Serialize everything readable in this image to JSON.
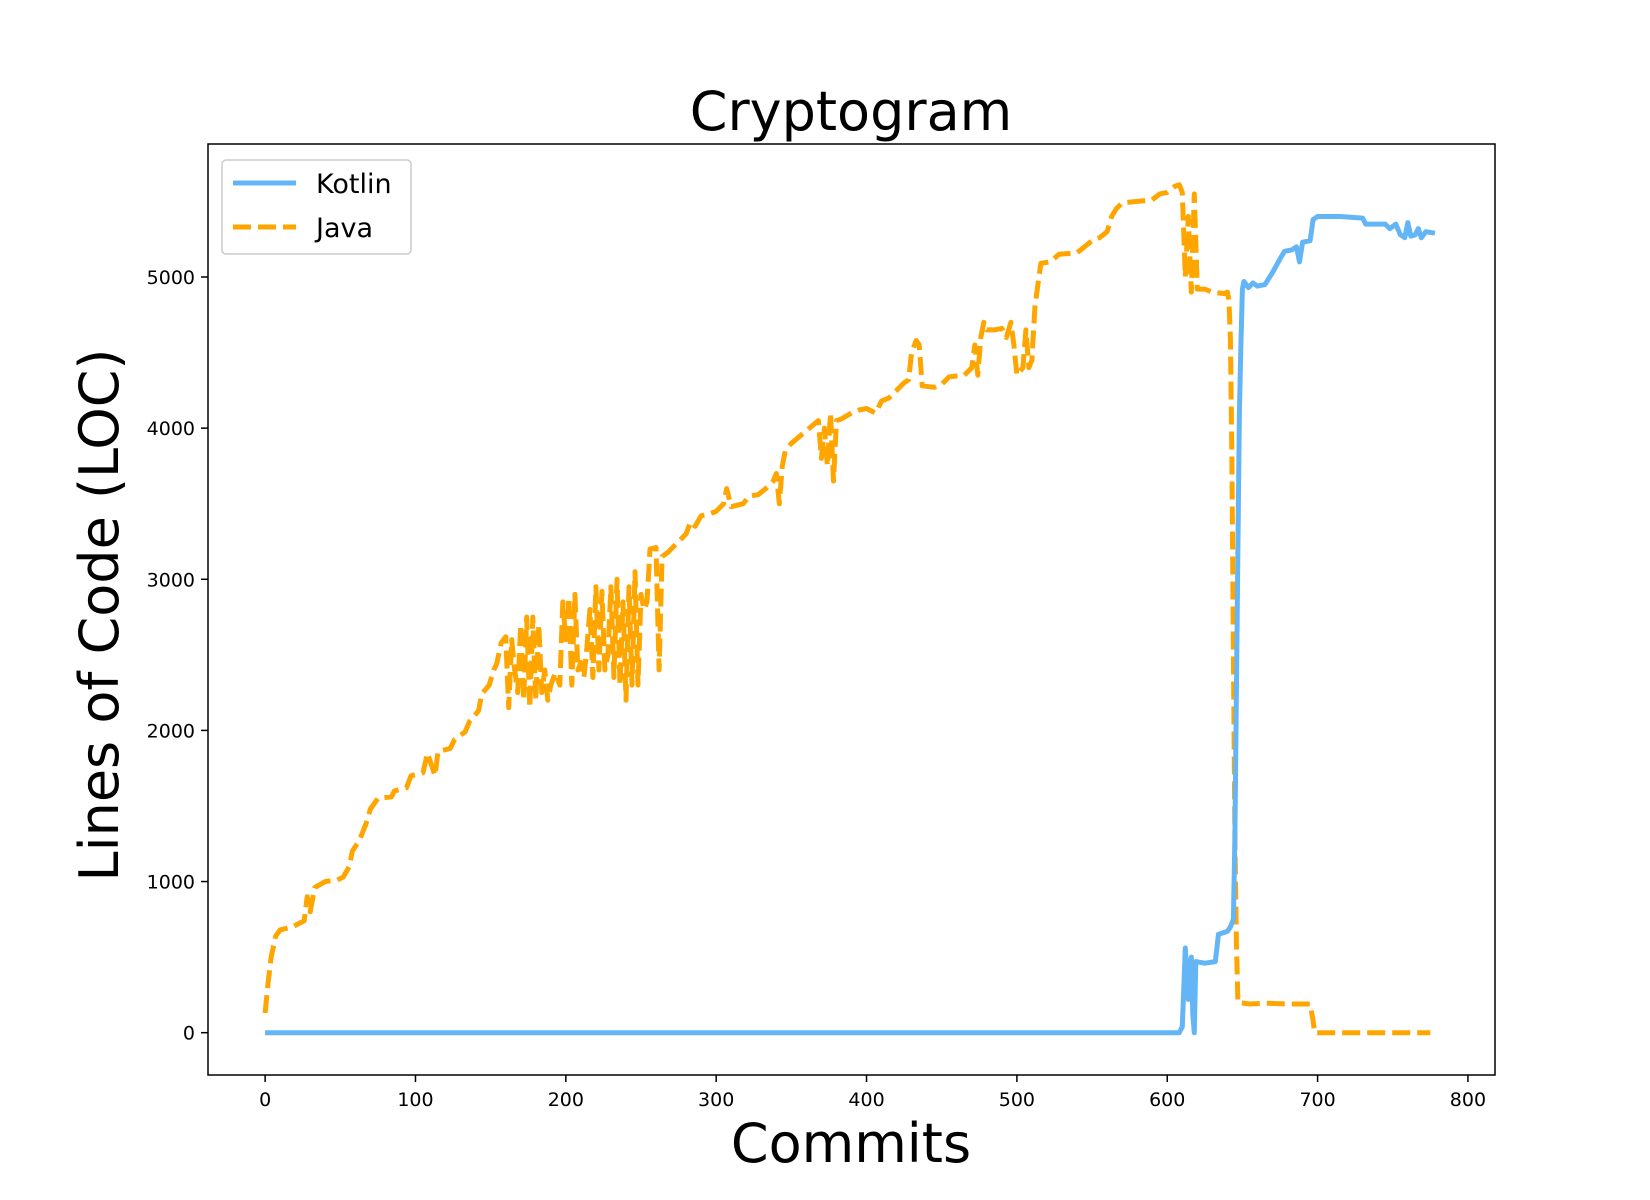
{
  "chart_data": {
    "type": "line",
    "title": "Cryptogram",
    "xlabel": "Commits",
    "ylabel": "Lines of Code (LOC)",
    "xlim": [
      -38,
      818
    ],
    "ylim": [
      -280,
      5880
    ],
    "xticks": [
      0,
      100,
      200,
      300,
      400,
      500,
      600,
      700,
      800
    ],
    "yticks": [
      0,
      1000,
      2000,
      3000,
      4000,
      5000
    ],
    "grid": false,
    "legend_position": "top-left",
    "series": [
      {
        "name": "Kotlin",
        "color": "#64b5f6",
        "style": "solid",
        "points": [
          [
            0,
            0
          ],
          [
            608,
            0
          ],
          [
            610,
            40
          ],
          [
            612,
            560
          ],
          [
            614,
            220
          ],
          [
            615,
            430
          ],
          [
            616,
            500
          ],
          [
            617,
            120
          ],
          [
            618,
            0
          ],
          [
            619,
            470
          ],
          [
            625,
            460
          ],
          [
            632,
            470
          ],
          [
            633,
            560
          ],
          [
            634,
            650
          ],
          [
            640,
            670
          ],
          [
            642,
            700
          ],
          [
            644,
            750
          ],
          [
            645,
            1300
          ],
          [
            647,
            3200
          ],
          [
            648,
            4100
          ],
          [
            649,
            4550
          ],
          [
            650,
            4920
          ],
          [
            651,
            4970
          ],
          [
            654,
            4930
          ],
          [
            657,
            4960
          ],
          [
            660,
            4940
          ],
          [
            665,
            4950
          ],
          [
            670,
            5030
          ],
          [
            675,
            5120
          ],
          [
            678,
            5170
          ],
          [
            683,
            5180
          ],
          [
            686,
            5200
          ],
          [
            688,
            5100
          ],
          [
            690,
            5230
          ],
          [
            695,
            5240
          ],
          [
            697,
            5380
          ],
          [
            700,
            5400
          ],
          [
            715,
            5400
          ],
          [
            730,
            5390
          ],
          [
            732,
            5350
          ],
          [
            745,
            5350
          ],
          [
            748,
            5320
          ],
          [
            752,
            5350
          ],
          [
            755,
            5280
          ],
          [
            758,
            5260
          ],
          [
            760,
            5360
          ],
          [
            762,
            5270
          ],
          [
            765,
            5280
          ],
          [
            767,
            5320
          ],
          [
            769,
            5260
          ],
          [
            772,
            5300
          ],
          [
            778,
            5290
          ]
        ]
      },
      {
        "name": "Java",
        "color": "#ffa500",
        "style": "dashed",
        "points": [
          [
            0,
            130
          ],
          [
            2,
            330
          ],
          [
            4,
            500
          ],
          [
            7,
            640
          ],
          [
            10,
            680
          ],
          [
            18,
            700
          ],
          [
            26,
            740
          ],
          [
            28,
            900
          ],
          [
            30,
            800
          ],
          [
            33,
            960
          ],
          [
            40,
            1000
          ],
          [
            48,
            1010
          ],
          [
            52,
            1030
          ],
          [
            56,
            1100
          ],
          [
            58,
            1200
          ],
          [
            63,
            1280
          ],
          [
            67,
            1380
          ],
          [
            70,
            1480
          ],
          [
            75,
            1550
          ],
          [
            84,
            1560
          ],
          [
            86,
            1600
          ],
          [
            94,
            1620
          ],
          [
            97,
            1700
          ],
          [
            105,
            1720
          ],
          [
            108,
            1850
          ],
          [
            113,
            1700
          ],
          [
            115,
            1860
          ],
          [
            123,
            1880
          ],
          [
            126,
            1940
          ],
          [
            133,
            1990
          ],
          [
            136,
            2060
          ],
          [
            142,
            2130
          ],
          [
            144,
            2240
          ],
          [
            149,
            2300
          ],
          [
            152,
            2400
          ],
          [
            154,
            2440
          ],
          [
            157,
            2580
          ],
          [
            160,
            2620
          ],
          [
            162,
            2150
          ],
          [
            164,
            2600
          ],
          [
            166,
            2400
          ],
          [
            168,
            2250
          ],
          [
            170,
            2700
          ],
          [
            172,
            2200
          ],
          [
            174,
            2750
          ],
          [
            176,
            2150
          ],
          [
            178,
            2750
          ],
          [
            180,
            2200
          ],
          [
            182,
            2700
          ],
          [
            184,
            2250
          ],
          [
            186,
            2400
          ],
          [
            188,
            2200
          ],
          [
            190,
            2300
          ],
          [
            193,
            2380
          ],
          [
            196,
            2300
          ],
          [
            198,
            2850
          ],
          [
            200,
            2600
          ],
          [
            202,
            2880
          ],
          [
            204,
            2300
          ],
          [
            206,
            2900
          ],
          [
            208,
            2400
          ],
          [
            210,
            2450
          ],
          [
            212,
            2350
          ],
          [
            214,
            2550
          ],
          [
            216,
            2800
          ],
          [
            218,
            2350
          ],
          [
            220,
            2950
          ],
          [
            222,
            2400
          ],
          [
            224,
            2920
          ],
          [
            226,
            2400
          ],
          [
            228,
            2500
          ],
          [
            230,
            2950
          ],
          [
            232,
            2350
          ],
          [
            234,
            3000
          ],
          [
            236,
            2300
          ],
          [
            238,
            2850
          ],
          [
            240,
            2200
          ],
          [
            242,
            2950
          ],
          [
            244,
            2300
          ],
          [
            246,
            3050
          ],
          [
            248,
            2300
          ],
          [
            250,
            2900
          ],
          [
            252,
            2800
          ],
          [
            254,
            2850
          ],
          [
            256,
            3200
          ],
          [
            260,
            3210
          ],
          [
            262,
            2400
          ],
          [
            264,
            3150
          ],
          [
            268,
            3180
          ],
          [
            275,
            3250
          ],
          [
            280,
            3300
          ],
          [
            283,
            3380
          ],
          [
            286,
            3350
          ],
          [
            290,
            3420
          ],
          [
            295,
            3430
          ],
          [
            300,
            3450
          ],
          [
            305,
            3500
          ],
          [
            307,
            3600
          ],
          [
            310,
            3480
          ],
          [
            318,
            3500
          ],
          [
            322,
            3550
          ],
          [
            328,
            3560
          ],
          [
            333,
            3600
          ],
          [
            338,
            3650
          ],
          [
            340,
            3700
          ],
          [
            342,
            3500
          ],
          [
            344,
            3750
          ],
          [
            346,
            3850
          ],
          [
            350,
            3900
          ],
          [
            356,
            3950
          ],
          [
            362,
            4000
          ],
          [
            368,
            4050
          ],
          [
            370,
            3800
          ],
          [
            372,
            4000
          ],
          [
            374,
            3750
          ],
          [
            376,
            4100
          ],
          [
            378,
            3650
          ],
          [
            380,
            4050
          ],
          [
            383,
            4060
          ],
          [
            390,
            4100
          ],
          [
            395,
            4120
          ],
          [
            400,
            4130
          ],
          [
            406,
            4100
          ],
          [
            410,
            4180
          ],
          [
            415,
            4200
          ],
          [
            420,
            4250
          ],
          [
            425,
            4300
          ],
          [
            428,
            4320
          ],
          [
            430,
            4500
          ],
          [
            433,
            4580
          ],
          [
            435,
            4550
          ],
          [
            437,
            4280
          ],
          [
            445,
            4270
          ],
          [
            450,
            4290
          ],
          [
            455,
            4340
          ],
          [
            465,
            4350
          ],
          [
            470,
            4400
          ],
          [
            472,
            4550
          ],
          [
            474,
            4350
          ],
          [
            476,
            4600
          ],
          [
            478,
            4700
          ],
          [
            480,
            4650
          ],
          [
            485,
            4650
          ],
          [
            490,
            4660
          ],
          [
            493,
            4600
          ],
          [
            496,
            4700
          ],
          [
            498,
            4550
          ],
          [
            500,
            4350
          ],
          [
            504,
            4400
          ],
          [
            506,
            4650
          ],
          [
            508,
            4400
          ],
          [
            510,
            4450
          ],
          [
            512,
            4800
          ],
          [
            514,
            4950
          ],
          [
            516,
            5090
          ],
          [
            522,
            5100
          ],
          [
            528,
            5150
          ],
          [
            540,
            5160
          ],
          [
            545,
            5200
          ],
          [
            550,
            5240
          ],
          [
            555,
            5260
          ],
          [
            560,
            5300
          ],
          [
            563,
            5400
          ],
          [
            566,
            5450
          ],
          [
            570,
            5490
          ],
          [
            580,
            5500
          ],
          [
            590,
            5510
          ],
          [
            595,
            5550
          ],
          [
            600,
            5560
          ],
          [
            605,
            5600
          ],
          [
            608,
            5610
          ],
          [
            610,
            5560
          ],
          [
            612,
            5000
          ],
          [
            614,
            5400
          ],
          [
            616,
            4900
          ],
          [
            618,
            5550
          ],
          [
            620,
            4920
          ],
          [
            625,
            4920
          ],
          [
            630,
            4900
          ],
          [
            638,
            4890
          ],
          [
            640,
            4900
          ],
          [
            641,
            4850
          ],
          [
            642,
            4600
          ],
          [
            643,
            3800
          ],
          [
            644,
            2500
          ],
          [
            645,
            1300
          ],
          [
            646,
            600
          ],
          [
            647,
            200
          ],
          [
            655,
            190
          ],
          [
            665,
            195
          ],
          [
            680,
            190
          ],
          [
            695,
            190
          ],
          [
            697,
            80
          ],
          [
            698,
            0
          ],
          [
            720,
            0
          ],
          [
            760,
            0
          ],
          [
            775,
            0
          ]
        ]
      }
    ]
  }
}
